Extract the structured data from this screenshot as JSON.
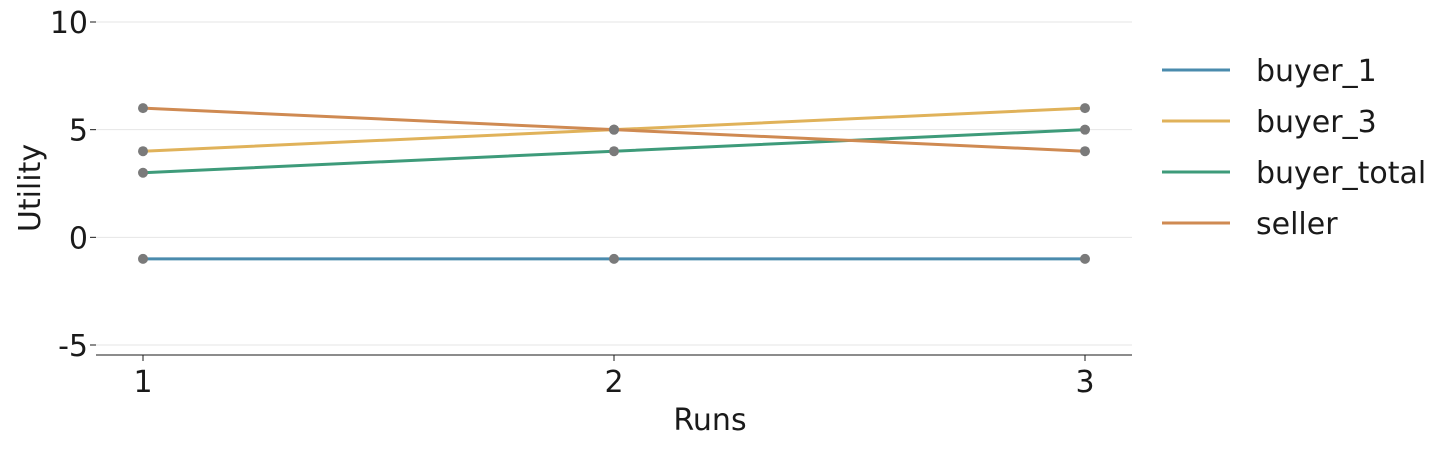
{
  "chart_data": {
    "type": "line",
    "title": "",
    "xlabel": "Runs",
    "ylabel": "Utility",
    "x": [
      1,
      2,
      3
    ],
    "xticks": [
      "1",
      "2",
      "3"
    ],
    "yticks": [
      "10",
      "5",
      "0",
      "-5"
    ],
    "ylim": [
      -5.5,
      10
    ],
    "grid": "horizontal",
    "legend_position": "right",
    "marker_color": "#7a7a7a",
    "series": [
      {
        "name": "buyer_1",
        "color": "#4a8bad",
        "values": [
          -1,
          -1,
          -1
        ]
      },
      {
        "name": "buyer_3",
        "color": "#e0b25a",
        "values": [
          4,
          5,
          6
        ]
      },
      {
        "name": "buyer_total",
        "color": "#3e9b7a",
        "values": [
          3,
          4,
          5
        ]
      },
      {
        "name": "seller",
        "color": "#cf8a52",
        "values": [
          6,
          5,
          4
        ]
      }
    ]
  }
}
